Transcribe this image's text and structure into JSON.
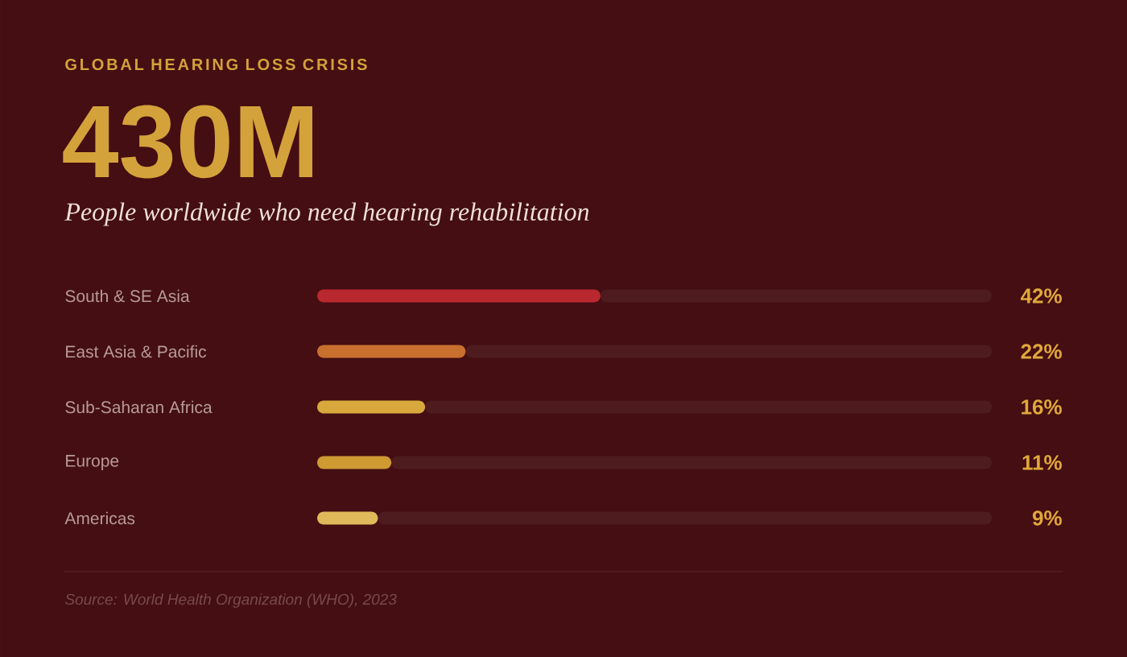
{
  "chart_data": {
    "type": "bar",
    "orientation": "horizontal",
    "stacked": true,
    "title": "GLOBAL HEARING LOSS CRISIS",
    "subtitle": "430M",
    "annotations": [
      "People worldwide who need hearing rehabilitation",
      "Source: World Health Organization (WHO), 2023"
    ],
    "categories": [
      "South & SE Asia",
      "East Asia & Pacific",
      "Sub-Saharan Africa",
      "Europe",
      "Americas"
    ],
    "series": [
      {
        "values": [
          42,
          22,
          16,
          11,
          9
        ],
        "colors": [
          "#b8282e",
          "#c9702f",
          "#d8a83c",
          "#cf9a32",
          "#e0b95a"
        ],
        "value_labels": [
          "42%",
          "22%",
          "16%",
          "11%",
          "9%"
        ]
      },
      {
        "values": [
          58,
          78,
          84,
          89,
          91
        ],
        "color": "#4e1c1e"
      }
    ],
    "xlim": [
      0,
      100
    ]
  }
}
